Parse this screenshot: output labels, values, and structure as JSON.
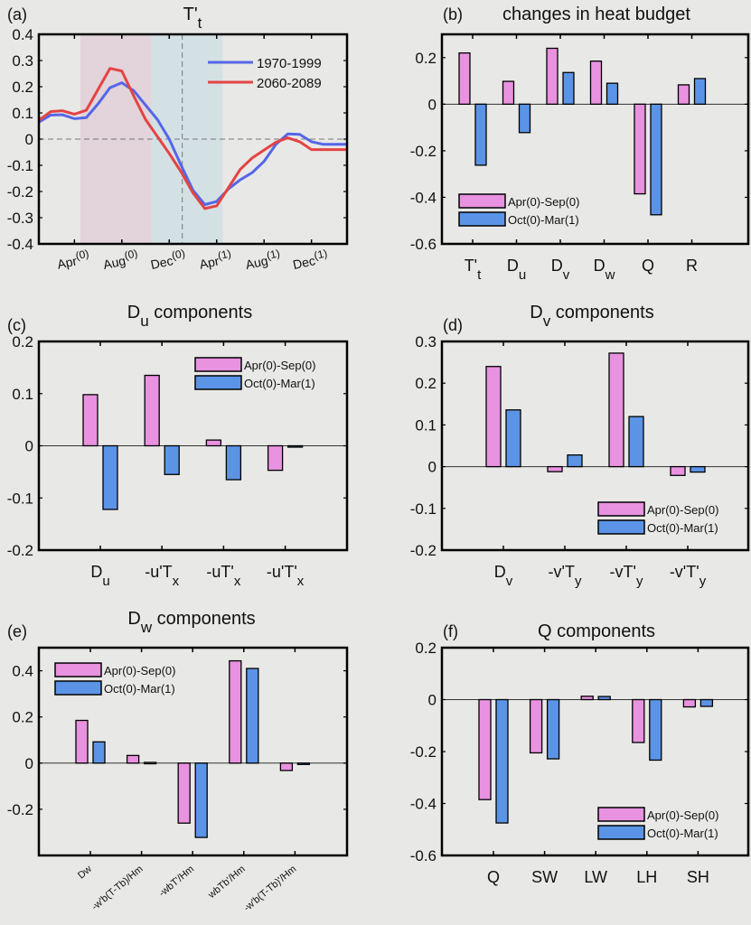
{
  "colors": {
    "background": "#e8e8e6",
    "bar_series_1": "#e892e0",
    "bar_series_2": "#5b94e6",
    "line_1970_1999": "#5566e8",
    "line_2060_2089": "#e34444",
    "shade_warm": "#e2d4da",
    "shade_cool": "#d4e1e4"
  },
  "chart_data": [
    {
      "id": "a",
      "type": "line",
      "panel_label": "(a)",
      "title": "T't",
      "title_main": "T'",
      "title_sub": "t",
      "xlabel": "",
      "ylabel": "",
      "ylim": [
        -0.4,
        0.4
      ],
      "yticks": [
        -0.4,
        -0.3,
        -0.2,
        -0.1,
        0,
        0.1,
        0.2,
        0.3,
        0.4
      ],
      "ytick_labels": [
        "-0.4",
        "-0.3",
        "-0.2",
        "-0.1",
        "0",
        "0.1",
        "0.2",
        "0.3",
        "0.4"
      ],
      "xlim": [
        0,
        26
      ],
      "xticks": [
        3,
        7,
        11,
        15,
        19,
        23
      ],
      "xtick_labels": [
        {
          "main": "Apr",
          "sup": "(0)"
        },
        {
          "main": "Aug",
          "sup": "(0)"
        },
        {
          "main": "Dec",
          "sup": "(0)"
        },
        {
          "main": "Apr",
          "sup": "(1)"
        },
        {
          "main": "Aug",
          "sup": "(1)"
        },
        {
          "main": "Dec",
          "sup": "(1)"
        }
      ],
      "shaded_regions": [
        {
          "name": "Apr(0)-Sep(0)",
          "x0": 3.5,
          "x1": 9.5,
          "color_key": "shade_warm"
        },
        {
          "name": "Oct(0)-Mar(1)",
          "x0": 9.5,
          "x1": 15.5,
          "color_key": "shade_cool"
        }
      ],
      "vline_x": 12.1,
      "hline_y": 0,
      "legend": {
        "position": "top-right",
        "entries": [
          "1970-1999",
          "2060-2089"
        ]
      },
      "x": [
        0,
        1,
        2,
        3,
        4,
        5,
        6,
        7,
        8,
        9,
        10,
        11,
        12,
        13,
        14,
        15,
        16,
        17,
        18,
        19,
        20,
        21,
        22,
        23,
        24,
        25,
        26
      ],
      "series": [
        {
          "name": "1970-1999",
          "color_key": "line_1970_1999",
          "values": [
            0.065,
            0.092,
            0.093,
            0.078,
            0.082,
            0.135,
            0.196,
            0.215,
            0.185,
            0.13,
            0.075,
            0.0,
            -0.1,
            -0.195,
            -0.25,
            -0.238,
            -0.19,
            -0.155,
            -0.128,
            -0.085,
            -0.02,
            0.02,
            0.018,
            -0.01,
            -0.02,
            -0.02,
            -0.02
          ]
        },
        {
          "name": "2060-2089",
          "color_key": "line_2060_2089",
          "values": [
            0.072,
            0.105,
            0.108,
            0.095,
            0.11,
            0.19,
            0.27,
            0.26,
            0.165,
            0.075,
            0.01,
            -0.055,
            -0.125,
            -0.205,
            -0.265,
            -0.255,
            -0.185,
            -0.115,
            -0.072,
            -0.042,
            -0.012,
            0.005,
            -0.01,
            -0.04,
            -0.04,
            -0.04,
            -0.04
          ]
        }
      ]
    },
    {
      "id": "b",
      "type": "bar",
      "panel_label": "(b)",
      "title": "changes in heat budget",
      "ylim": [
        -0.6,
        0.3
      ],
      "yticks": [
        -0.6,
        -0.4,
        -0.2,
        0,
        0.2
      ],
      "ytick_labels": [
        "-0.6",
        "-0.4",
        "-0.2",
        "0",
        "0.2"
      ],
      "categories": [
        {
          "main": "T'",
          "sub": "t"
        },
        {
          "main": "D",
          "sub": "u"
        },
        {
          "main": "D",
          "sub": "v"
        },
        {
          "main": "D",
          "sub": "w"
        },
        {
          "main": "Q",
          "sub": ""
        },
        {
          "main": "R",
          "sub": ""
        }
      ],
      "legend": {
        "position": "bottom-left",
        "entries": [
          "Apr(0)-Sep(0)",
          "Oct(0)-Mar(1)"
        ]
      },
      "series": [
        {
          "name": "Apr(0)-Sep(0)",
          "color_key": "bar_series_1",
          "values": [
            0.22,
            0.098,
            0.24,
            0.185,
            -0.385,
            0.083
          ]
        },
        {
          "name": "Oct(0)-Mar(1)",
          "color_key": "bar_series_2",
          "values": [
            -0.262,
            -0.122,
            0.136,
            0.09,
            -0.475,
            0.11
          ]
        }
      ]
    },
    {
      "id": "c",
      "type": "bar",
      "panel_label": "(c)",
      "title": "Du components",
      "title_main": "D",
      "title_sub": "u",
      "title_rest": " components",
      "ylim": [
        -0.2,
        0.2
      ],
      "yticks": [
        -0.2,
        -0.1,
        0,
        0.1,
        0.2
      ],
      "ytick_labels": [
        "-0.2",
        "-0.1",
        "0",
        "0.1",
        "0.2"
      ],
      "categories": [
        {
          "main": "D",
          "sub": "u"
        },
        {
          "main": "-u'T",
          "sub": "x"
        },
        {
          "main": "-uT'",
          "sub": "x"
        },
        {
          "main": "-u'T'",
          "sub": "x"
        }
      ],
      "legend": {
        "position": "top-right",
        "entries": [
          "Apr(0)-Sep(0)",
          "Oct(0)-Mar(1)"
        ]
      },
      "series": [
        {
          "name": "Apr(0)-Sep(0)",
          "color_key": "bar_series_1",
          "values": [
            0.098,
            0.135,
            0.011,
            -0.047
          ]
        },
        {
          "name": "Oct(0)-Mar(1)",
          "color_key": "bar_series_2",
          "values": [
            -0.122,
            -0.055,
            -0.065,
            -0.002
          ]
        }
      ]
    },
    {
      "id": "d",
      "type": "bar",
      "panel_label": "(d)",
      "title": "Dv components",
      "title_main": "D",
      "title_sub": "v",
      "title_rest": " components",
      "ylim": [
        -0.2,
        0.3
      ],
      "yticks": [
        -0.2,
        -0.1,
        0,
        0.1,
        0.2,
        0.3
      ],
      "ytick_labels": [
        "-0.2",
        "-0.1",
        "0",
        "0.1",
        "0.2",
        "0.3"
      ],
      "categories": [
        {
          "main": "D",
          "sub": "v"
        },
        {
          "main": "-v'T",
          "sub": "y"
        },
        {
          "main": "-vT'",
          "sub": "y"
        },
        {
          "main": "-v'T'",
          "sub": "y"
        }
      ],
      "legend": {
        "position": "bottom-right",
        "entries": [
          "Apr(0)-Sep(0)",
          "Oct(0)-Mar(1)"
        ]
      },
      "series": [
        {
          "name": "Apr(0)-Sep(0)",
          "color_key": "bar_series_1",
          "values": [
            0.24,
            -0.012,
            0.272,
            -0.021
          ]
        },
        {
          "name": "Oct(0)-Mar(1)",
          "color_key": "bar_series_2",
          "values": [
            0.136,
            0.028,
            0.12,
            -0.013
          ]
        }
      ]
    },
    {
      "id": "e",
      "type": "bar",
      "panel_label": "(e)",
      "title": "Dw components",
      "title_main": "D",
      "title_sub": "w",
      "title_rest": " components",
      "ylim": [
        -0.4,
        0.5
      ],
      "yticks": [
        -0.2,
        0,
        0.2,
        0.4
      ],
      "ytick_labels": [
        "-0.2",
        "0",
        "0.2",
        "0.4"
      ],
      "categories": [
        {
          "label": "Dw"
        },
        {
          "label": "-w'b(T-Tb)/Hm"
        },
        {
          "label": "-wbT'/Hm"
        },
        {
          "label": "wbTb'/Hm"
        },
        {
          "label": "-w'b(T-Tb)'/Hm"
        }
      ],
      "legend": {
        "position": "top-left",
        "entries": [
          "Apr(0)-Sep(0)",
          "Oct(0)-Mar(1)"
        ]
      },
      "series": [
        {
          "name": "Apr(0)-Sep(0)",
          "color_key": "bar_series_1",
          "values": [
            0.185,
            0.033,
            -0.26,
            0.443,
            -0.032
          ]
        },
        {
          "name": "Oct(0)-Mar(1)",
          "color_key": "bar_series_2",
          "values": [
            0.092,
            0.003,
            -0.322,
            0.41,
            -0.002
          ]
        }
      ]
    },
    {
      "id": "f",
      "type": "bar",
      "panel_label": "(f)",
      "title": "Q components",
      "ylim": [
        -0.6,
        0.2
      ],
      "yticks": [
        -0.6,
        -0.4,
        -0.2,
        0,
        0.2
      ],
      "ytick_labels": [
        "-0.6",
        "-0.4",
        "-0.2",
        "0",
        "0.2"
      ],
      "categories": [
        {
          "main": "Q",
          "sub": ""
        },
        {
          "main": "SW",
          "sub": ""
        },
        {
          "main": "LW",
          "sub": ""
        },
        {
          "main": "LH",
          "sub": ""
        },
        {
          "main": "SH",
          "sub": ""
        }
      ],
      "legend": {
        "position": "bottom-right",
        "entries": [
          "Apr(0)-Sep(0)",
          "Oct(0)-Mar(1)"
        ]
      },
      "series": [
        {
          "name": "Apr(0)-Sep(0)",
          "color_key": "bar_series_1",
          "values": [
            -0.385,
            -0.205,
            0.013,
            -0.165,
            -0.028
          ]
        },
        {
          "name": "Oct(0)-Mar(1)",
          "color_key": "bar_series_2",
          "values": [
            -0.475,
            -0.228,
            0.012,
            -0.233,
            -0.026
          ]
        }
      ]
    }
  ]
}
